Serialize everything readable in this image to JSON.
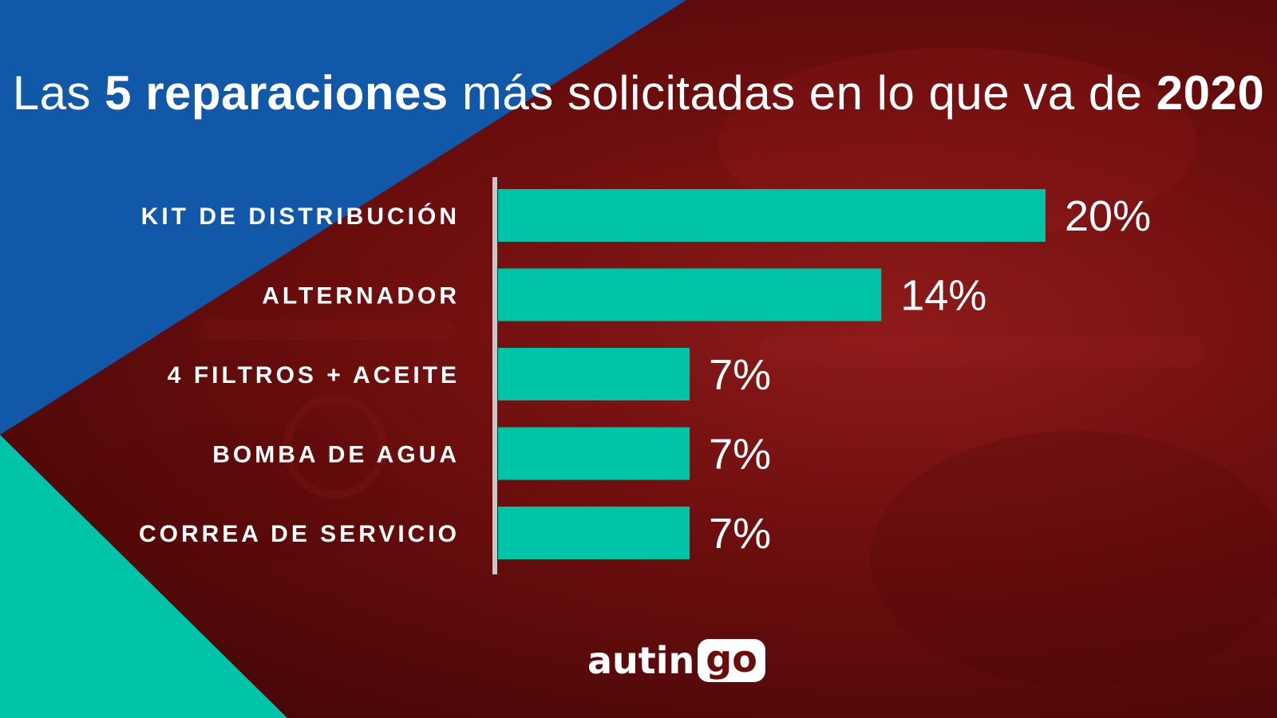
{
  "title": {
    "part1": "Las ",
    "bold1": "5 reparaciones",
    "part2": " más solicitadas en lo que va de ",
    "bold2": "2020"
  },
  "chart_data": {
    "type": "bar",
    "orientation": "horizontal",
    "categories": [
      "KIT DE DISTRIBUCIÓN",
      "ALTERNADOR",
      "4 FILTROS + ACEITE",
      "BOMBA DE AGUA",
      "CORREA DE SERVICIO"
    ],
    "values": [
      20,
      14,
      7,
      7,
      7
    ],
    "value_labels": [
      "20%",
      "14%",
      "7%",
      "7%",
      "7%"
    ],
    "xlim": [
      0,
      20
    ],
    "grid": false,
    "bar_color": "#00c4a7"
  },
  "colors": {
    "blue": "#1159a8",
    "teal": "#00c4a7",
    "red": "#7a1010"
  },
  "logo": {
    "part1": "autin",
    "part2": "go"
  }
}
